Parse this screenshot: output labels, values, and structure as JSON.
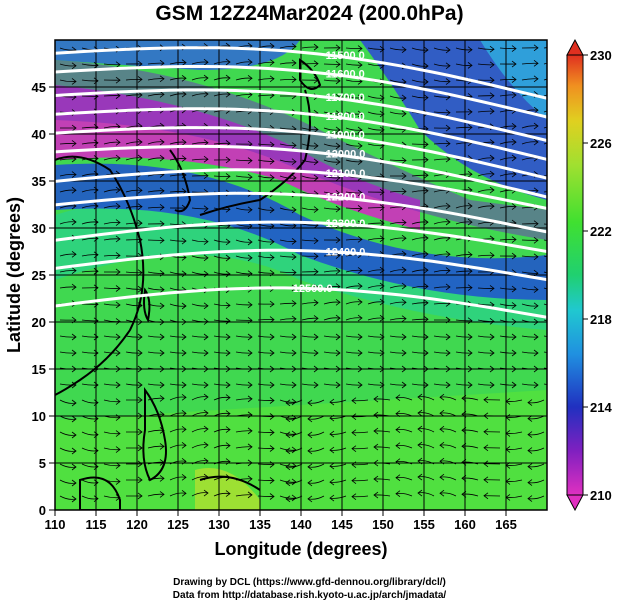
{
  "title": "GSM 12Z24Mar2024 (200.0hPa)",
  "axes": {
    "xlabel": "Longitude (degrees)",
    "ylabel": "Latitude  (degrees)",
    "x_ticks": [
      "110",
      "115",
      "120",
      "125",
      "130",
      "135",
      "140",
      "145",
      "150",
      "155",
      "160",
      "165"
    ],
    "y_ticks": [
      "0",
      "5",
      "10",
      "15",
      "20",
      "25",
      "30",
      "35",
      "40",
      "45"
    ],
    "xlim": [
      110,
      170
    ],
    "ylim": [
      0,
      50
    ]
  },
  "colorbar": {
    "labels": [
      "230",
      "226",
      "222",
      "218",
      "214",
      "210"
    ],
    "range": [
      210,
      230
    ],
    "colors": [
      "#e030c0",
      "#7020c0",
      "#2030c0",
      "#20a0e0",
      "#20d0a0",
      "#30e030",
      "#90e030",
      "#e0e020",
      "#f0a020",
      "#e03020"
    ]
  },
  "contours": [
    {
      "label": "11500.0"
    },
    {
      "label": "11600.0"
    },
    {
      "label": "11700.0"
    },
    {
      "label": "11800.0"
    },
    {
      "label": "11900.0"
    },
    {
      "label": "12000.0"
    },
    {
      "label": "12100.0"
    },
    {
      "label": "12200.0"
    },
    {
      "label": "12300.0"
    },
    {
      "label": "12400.0"
    },
    {
      "label": "12500.0"
    }
  ],
  "credits": {
    "line1": "Drawing by DCL (https://www.gfd-dennou.org/library/dcl/)",
    "line2": "Data from http://database.rish.kyoto-u.ac.jp/arch/jmadata/"
  },
  "chart_data": {
    "type": "heatmap",
    "title": "GSM 12Z24Mar2024 (200.0hPa)",
    "xlabel": "Longitude (degrees)",
    "ylabel": "Latitude  (degrees)",
    "xlim": [
      110,
      170
    ],
    "ylim": [
      0,
      50
    ],
    "color_range": [
      210,
      230
    ],
    "color_ticks": [
      210,
      214,
      218,
      222,
      226,
      230
    ],
    "contour_levels": [
      11500,
      11600,
      11700,
      11800,
      11900,
      12000,
      12100,
      12200,
      12300,
      12400,
      12500
    ],
    "grid": true
  }
}
